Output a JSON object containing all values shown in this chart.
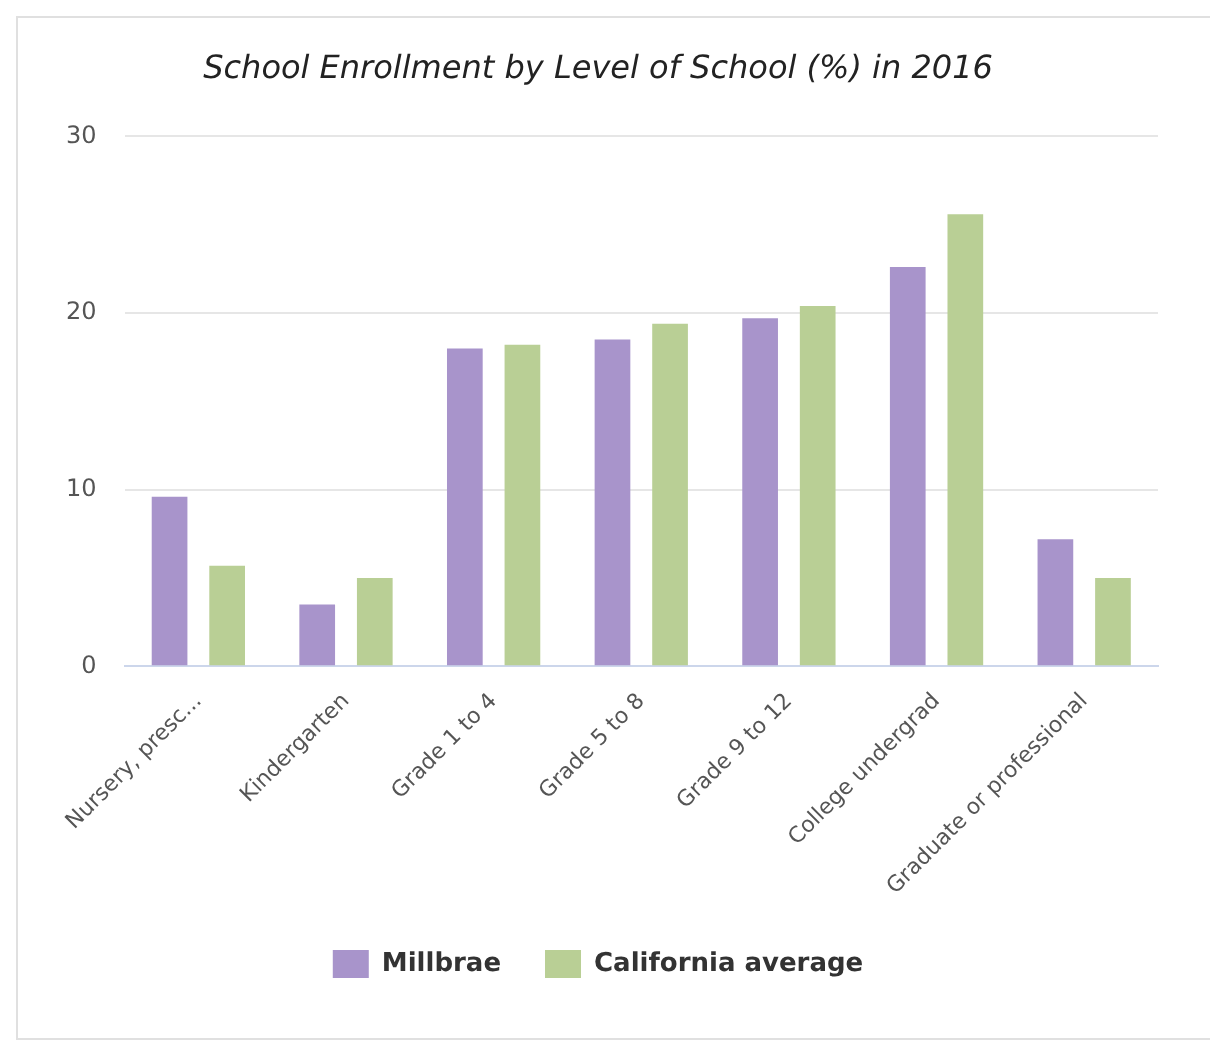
{
  "chart_data": {
    "type": "bar",
    "title": "School Enrollment by Level of School (%) in 2016",
    "categories": [
      "Nursery, presc...",
      "Kindergarten",
      "Grade 1 to 4",
      "Grade 5 to 8",
      "Grade 9 to 12",
      "College undergrad",
      "Graduate or professional"
    ],
    "series": [
      {
        "name": "Millbrae",
        "color": "#a894cb",
        "values": [
          9.6,
          3.5,
          18.0,
          18.5,
          19.7,
          22.6,
          7.2
        ]
      },
      {
        "name": "California average",
        "color": "#b9cf95",
        "values": [
          5.7,
          5.0,
          18.2,
          19.4,
          20.4,
          25.6,
          5.0
        ]
      }
    ],
    "ylim": [
      0,
      30
    ],
    "yticks": [
      0,
      10,
      20,
      30
    ],
    "grid": "y",
    "legend": "bottom"
  }
}
